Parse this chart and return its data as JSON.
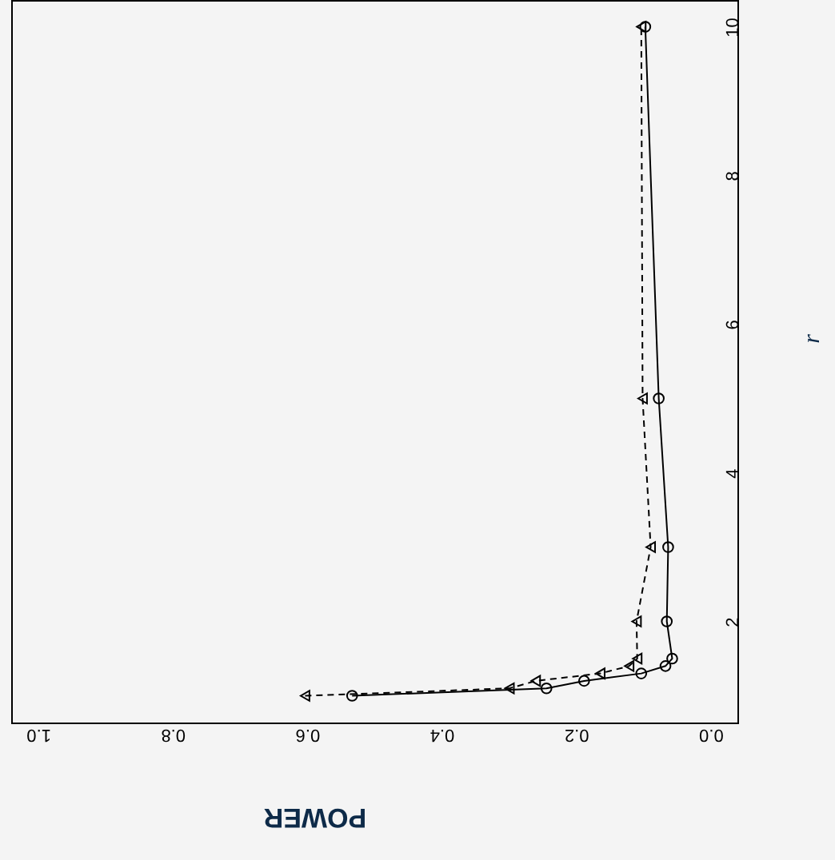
{
  "chart_data": {
    "type": "line",
    "orientation": "horizontal",
    "xlabel": "POWER",
    "ylabel": "r",
    "xlim": [
      1.04,
      -0.04
    ],
    "xticks": [
      {
        "value": 0,
        "label": "0.0"
      },
      {
        "value": 0.2,
        "label": "0.2"
      },
      {
        "value": 0.4,
        "label": "0.4"
      },
      {
        "value": 0.6,
        "label": "0.6"
      },
      {
        "value": 0.8,
        "label": "0.8"
      },
      {
        "value": 1,
        "label": "1.0"
      }
    ],
    "ylim": [
      0.64,
      10.36
    ],
    "yticks": [
      2,
      4,
      6,
      8,
      10
    ],
    "x": [
      1,
      1.1,
      1.2,
      1.3,
      1.4,
      1.5,
      2,
      3,
      5,
      10
    ],
    "series": [
      {
        "color": "#000000",
        "marker": "circle",
        "line_style": "solid",
        "values": [
          0.533,
          0.244,
          0.188,
          0.103,
          0.067,
          0.057,
          0.065,
          0.063,
          0.077,
          0.097
        ]
      },
      {
        "color": "#000000",
        "marker": "triangle",
        "line_style": "dashed",
        "values": [
          0.603,
          0.299,
          0.26,
          0.164,
          0.121,
          0.109,
          0.11,
          0.089,
          0.101,
          0.103
        ]
      }
    ],
    "grid": false
  }
}
